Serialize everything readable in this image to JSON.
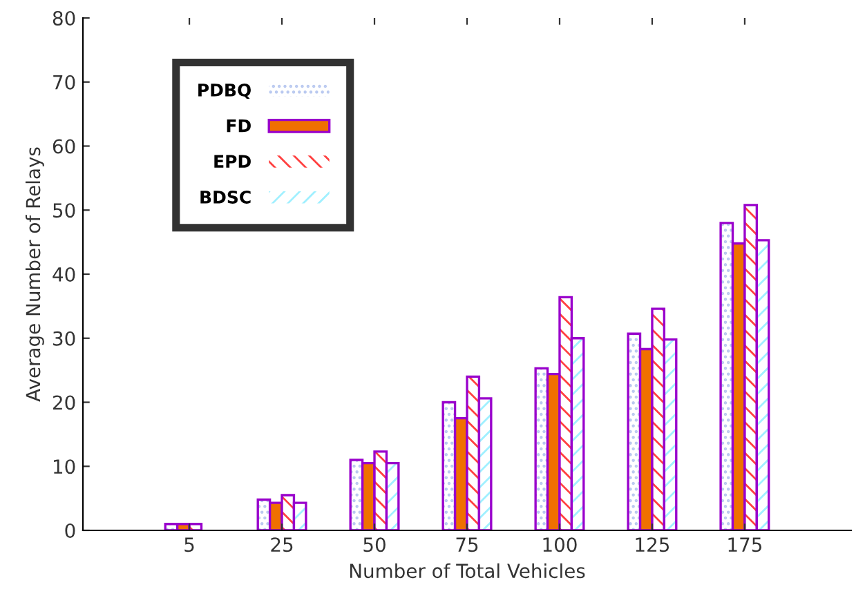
{
  "chart_data": {
    "type": "bar",
    "xlabel": "Number of Total Vehicles",
    "ylabel": "Average Number of Relays",
    "categories": [
      "5",
      "25",
      "50",
      "75",
      "100",
      "125",
      "175"
    ],
    "series": [
      {
        "name": "PDBQ",
        "color": "#b8c8f0",
        "values": [
          1,
          4.8,
          11,
          20,
          25.3,
          30.7,
          48
        ]
      },
      {
        "name": "FD",
        "color": "#f07000",
        "values": [
          1,
          4.3,
          10.5,
          17.5,
          24.4,
          28.3,
          44.8
        ]
      },
      {
        "name": "EPD",
        "color": "#ff4040",
        "values": [
          1,
          5.5,
          12.3,
          24,
          36.4,
          34.6,
          50.8
        ]
      },
      {
        "name": "BDSC",
        "color": "#a0f0ff",
        "values": [
          null,
          4.3,
          10.5,
          20.6,
          30,
          29.8,
          45.3
        ]
      }
    ],
    "ylim": [
      0,
      80
    ],
    "yticks": [
      0,
      10,
      20,
      30,
      40,
      50,
      60,
      70,
      80
    ],
    "grid": false,
    "legend": "top left"
  }
}
